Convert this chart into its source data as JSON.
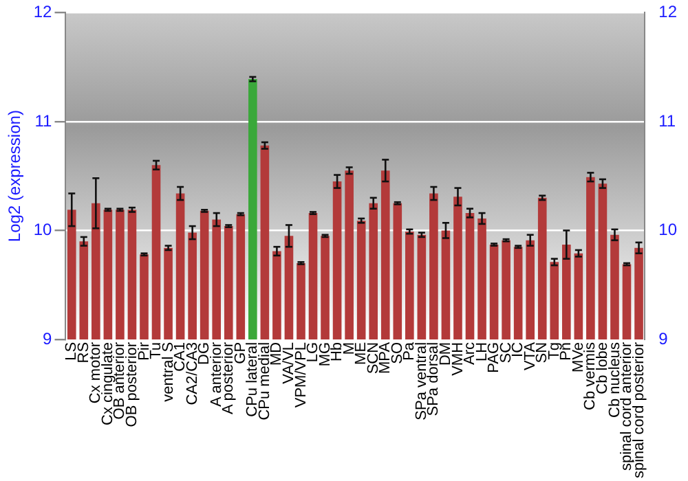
{
  "chart_data": {
    "type": "bar",
    "ylabel": "Log2 (expression)",
    "categories": [
      "LS",
      "RS",
      "Cx motor",
      "Cx cingulate",
      "OB anterior",
      "OB posterior",
      "Pir",
      "Tu",
      "ventral S",
      "CA1",
      "CA2/CA3",
      "DG",
      "A anterior",
      "A posterior",
      "GP",
      "CPu lateral",
      "CPu medial",
      "MD",
      "VA/VL",
      "VPM/VPL",
      "LG",
      "MG",
      "Hb",
      "M",
      "ME",
      "SCN",
      "MPA",
      "SO",
      "Pa",
      "SPa ventral",
      "SPa dorsal",
      "DM",
      "VMH",
      "Arc",
      "LH",
      "PAG",
      "SC",
      "IC",
      "VTA",
      "SN",
      "Tg",
      "Pn",
      "MVe",
      "Cb vermis",
      "Cb lobe",
      "Cb nucleus",
      "spinal cord anterior",
      "spinal cord posterior"
    ],
    "values": [
      10.19,
      9.9,
      10.25,
      10.19,
      10.19,
      10.19,
      9.78,
      10.6,
      9.84,
      10.34,
      9.98,
      10.18,
      10.1,
      10.04,
      10.15,
      11.39,
      10.78,
      9.81,
      9.95,
      9.7,
      10.16,
      9.95,
      10.45,
      10.55,
      10.09,
      10.25,
      10.55,
      10.25,
      9.99,
      9.96,
      10.34,
      10.0,
      10.31,
      10.16,
      10.11,
      9.87,
      9.91,
      9.85,
      9.91,
      10.3,
      9.71,
      9.87,
      9.79,
      10.49,
      10.43,
      9.96,
      9.69,
      9.84
    ],
    "errors": [
      0.15,
      0.04,
      0.23,
      0.01,
      0.01,
      0.02,
      0.01,
      0.04,
      0.02,
      0.06,
      0.06,
      0.01,
      0.06,
      0.01,
      0.01,
      0.02,
      0.03,
      0.04,
      0.1,
      0.01,
      0.01,
      0.01,
      0.06,
      0.03,
      0.02,
      0.05,
      0.1,
      0.01,
      0.02,
      0.02,
      0.06,
      0.07,
      0.08,
      0.04,
      0.05,
      0.01,
      0.01,
      0.01,
      0.05,
      0.02,
      0.03,
      0.13,
      0.03,
      0.04,
      0.04,
      0.05,
      0.01,
      0.05
    ],
    "colors": [
      "#b33a3a",
      "#b33a3a",
      "#b33a3a",
      "#b33a3a",
      "#b33a3a",
      "#b33a3a",
      "#b33a3a",
      "#b33a3a",
      "#b33a3a",
      "#b33a3a",
      "#b33a3a",
      "#b33a3a",
      "#b33a3a",
      "#b33a3a",
      "#b33a3a",
      "#3aa83a",
      "#b33a3a",
      "#b33a3a",
      "#b33a3a",
      "#b33a3a",
      "#b33a3a",
      "#b33a3a",
      "#b33a3a",
      "#b33a3a",
      "#b33a3a",
      "#b33a3a",
      "#b33a3a",
      "#b33a3a",
      "#b33a3a",
      "#b33a3a",
      "#b33a3a",
      "#b33a3a",
      "#b33a3a",
      "#b33a3a",
      "#b33a3a",
      "#b33a3a",
      "#b33a3a",
      "#b33a3a",
      "#b33a3a",
      "#b33a3a",
      "#b33a3a",
      "#b33a3a",
      "#b33a3a",
      "#b33a3a",
      "#b33a3a",
      "#b33a3a",
      "#b33a3a",
      "#b33a3a"
    ],
    "ylim": [
      9,
      12
    ],
    "yticks": [
      9,
      10,
      11,
      12
    ],
    "y2lim": [
      9,
      12
    ],
    "y2ticks": [
      9,
      10,
      11,
      12
    ],
    "grid": "y",
    "legend": false
  }
}
